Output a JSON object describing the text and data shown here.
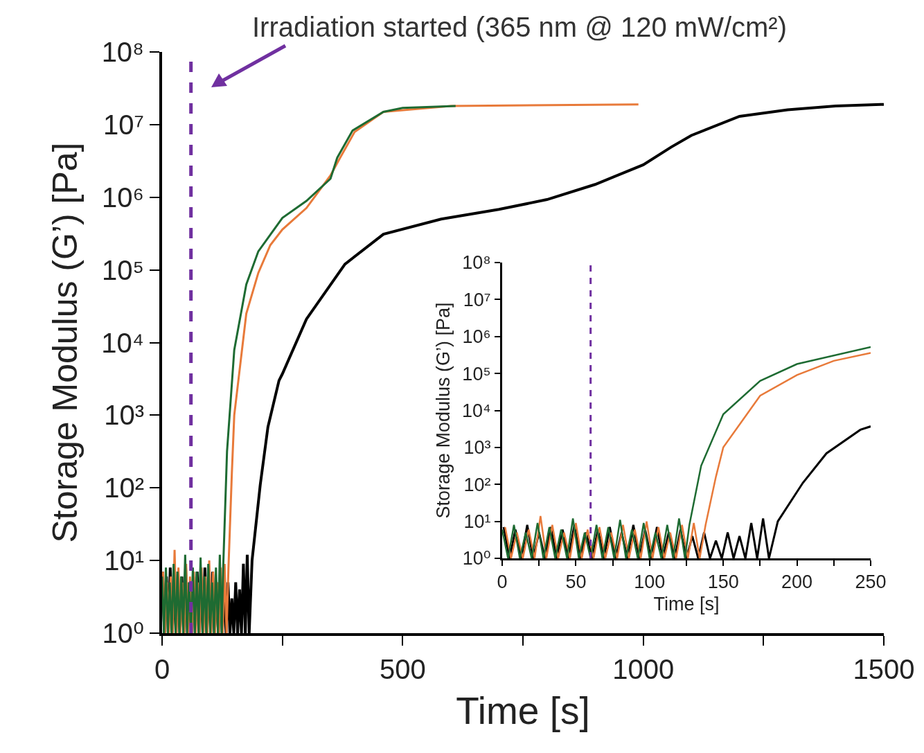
{
  "chart_data": [
    {
      "type": "line",
      "xlabel": "Time [s]",
      "ylabel": "Storage Modulus (G’) [Pa]",
      "log": "y",
      "grid": false,
      "xlim": [
        0,
        1500
      ],
      "xticks": [
        0,
        {
          "value": 250,
          "label": null
        },
        500,
        {
          "value": 750,
          "label": null
        },
        1000,
        {
          "value": 1250,
          "label": null
        },
        1500
      ],
      "ylim": [
        1,
        100000000
      ],
      "yticks": [
        {
          "value": 1,
          "label": "10⁰"
        },
        {
          "value": 10,
          "label": "10¹"
        },
        {
          "value": 100,
          "label": "10²"
        },
        {
          "value": 1000,
          "label": "10³"
        },
        {
          "value": 10000,
          "label": "10⁴"
        },
        {
          "value": 100000,
          "label": "10⁵"
        },
        {
          "value": 1000000,
          "label": "10⁶"
        },
        {
          "value": 10000000,
          "label": "10⁷"
        },
        {
          "value": 100000000,
          "label": "10⁸"
        }
      ],
      "ref_lines": [
        {
          "axis": "x",
          "value": 60,
          "color": "#7030a0",
          "line_style": "dashed"
        }
      ],
      "annotations": [
        "Irradiation started (365 nm @ 120 mW/cm²)"
      ],
      "series": [
        {
          "color": "#000000",
          "x": [
            1,
            5,
            9,
            13,
            17,
            21,
            25,
            29,
            33,
            37,
            41,
            45,
            49,
            53,
            57,
            61,
            65,
            69,
            73,
            77,
            81,
            85,
            89,
            93,
            97,
            101,
            105,
            109,
            113,
            117,
            121,
            125,
            129,
            133,
            137,
            141,
            145,
            149,
            153,
            157,
            161,
            165,
            169,
            173,
            177,
            181,
            187,
            204,
            220,
            243,
            250,
            300,
            380,
            460,
            580,
            700,
            800,
            900,
            1000,
            1058,
            1100,
            1200,
            1300,
            1400,
            1500
          ],
          "values": [
            7,
            1,
            6,
            1,
            8,
            1,
            5,
            1,
            7,
            1,
            6,
            1,
            8,
            1,
            5,
            1,
            6,
            1,
            7,
            1,
            5,
            1,
            8,
            1,
            6,
            1,
            7,
            1,
            5,
            1,
            6,
            1,
            4,
            1,
            5,
            1,
            3,
            1,
            5,
            1,
            4,
            1,
            9,
            1,
            12,
            1,
            10,
            110,
            690,
            3000,
            3700,
            21000,
            120000,
            310000,
            500000,
            680000,
            930000,
            1500000,
            2800000,
            4900000,
            7100000,
            13000000,
            16000000,
            18000000,
            19000000
          ]
        },
        {
          "color": "#e87a3a",
          "x": [
            2,
            6,
            10,
            14,
            18,
            22,
            26,
            30,
            34,
            38,
            42,
            46,
            50,
            54,
            58,
            62,
            66,
            70,
            74,
            78,
            82,
            86,
            90,
            94,
            98,
            102,
            106,
            110,
            114,
            118,
            122,
            126,
            130,
            134,
            138,
            145,
            150,
            175,
            200,
            225,
            250,
            300,
            350,
            370,
            400,
            460,
            600,
            990
          ],
          "values": [
            7,
            1,
            5,
            1,
            6,
            1,
            14,
            1,
            8,
            1,
            5,
            1,
            9,
            1,
            6,
            1,
            7,
            1,
            5,
            1,
            8,
            1,
            6,
            1,
            10,
            1,
            7,
            1,
            5,
            1,
            8,
            1,
            9,
            1,
            8,
            160,
            1000,
            25000,
            91000,
            220000,
            360000,
            710000,
            2000000,
            3500000,
            7900000,
            15000000,
            18000000,
            19000000
          ]
        },
        {
          "color": "#1e6b32",
          "x": [
            0,
            4,
            8,
            12,
            16,
            20,
            24,
            28,
            32,
            36,
            40,
            44,
            48,
            52,
            56,
            60,
            64,
            68,
            72,
            76,
            80,
            84,
            88,
            92,
            96,
            100,
            104,
            108,
            112,
            116,
            120,
            124,
            127,
            135,
            150,
            175,
            200,
            250,
            300,
            350,
            364,
            396,
            460,
            500,
            610
          ],
          "values": [
            6,
            1,
            8,
            1,
            5,
            1,
            9,
            1,
            7,
            1,
            6,
            1,
            12,
            1,
            5,
            1,
            8,
            1,
            7,
            1,
            11,
            1,
            6,
            1,
            9,
            1,
            5,
            1,
            8,
            1,
            12,
            1,
            8,
            320,
            7900,
            63000,
            180000,
            520000,
            890000,
            1800000,
            3500000,
            8300000,
            15000000,
            17000000,
            18000000
          ]
        }
      ]
    },
    {
      "type": "line",
      "xlabel": "Time [s]",
      "ylabel": "Storage Modulus (G’) [Pa]",
      "log": "y",
      "grid": false,
      "xlim": [
        0,
        250
      ],
      "xticks": [
        0,
        {
          "value": 25,
          "label": null
        },
        50,
        {
          "value": 75,
          "label": null
        },
        100,
        {
          "value": 125,
          "label": null
        },
        150,
        {
          "value": 175,
          "label": null
        },
        200,
        {
          "value": 225,
          "label": null
        },
        250
      ],
      "ylim": [
        1,
        100000000
      ],
      "yticks": [
        {
          "value": 1,
          "label": "10⁰"
        },
        {
          "value": 10,
          "label": "10¹"
        },
        {
          "value": 100,
          "label": "10²"
        },
        {
          "value": 1000,
          "label": "10³"
        },
        {
          "value": 10000,
          "label": "10⁴"
        },
        {
          "value": 100000,
          "label": "10⁵"
        },
        {
          "value": 1000000,
          "label": "10⁶"
        },
        {
          "value": 10000000,
          "label": "10⁷"
        },
        {
          "value": 100000000,
          "label": "10⁸"
        }
      ],
      "ref_lines": [
        {
          "axis": "x",
          "value": 60,
          "color": "#7030a0",
          "line_style": "dashed"
        }
      ],
      "series": [
        {
          "color": "#000000",
          "x": [
            1,
            5,
            9,
            13,
            17,
            21,
            25,
            29,
            33,
            37,
            41,
            45,
            49,
            53,
            57,
            61,
            65,
            69,
            73,
            77,
            81,
            85,
            89,
            93,
            97,
            101,
            105,
            109,
            113,
            117,
            121,
            125,
            129,
            133,
            137,
            141,
            145,
            149,
            153,
            157,
            161,
            165,
            169,
            173,
            177,
            181,
            187,
            204,
            220,
            243,
            250
          ],
          "values": [
            7,
            1,
            6,
            1,
            8,
            1,
            5,
            1,
            7,
            1,
            6,
            1,
            8,
            1,
            5,
            1,
            6,
            1,
            7,
            1,
            5,
            1,
            8,
            1,
            6,
            1,
            7,
            1,
            5,
            1,
            6,
            1,
            4,
            1,
            5,
            1,
            3,
            1,
            5,
            1,
            4,
            1,
            9,
            1,
            12,
            1,
            10,
            110,
            690,
            3000,
            3700
          ]
        },
        {
          "color": "#e87a3a",
          "x": [
            2,
            6,
            10,
            14,
            18,
            22,
            26,
            30,
            34,
            38,
            42,
            46,
            50,
            54,
            58,
            62,
            66,
            70,
            74,
            78,
            82,
            86,
            90,
            94,
            98,
            102,
            106,
            110,
            114,
            118,
            122,
            126,
            130,
            134,
            138,
            145,
            150,
            175,
            200,
            225,
            250
          ],
          "values": [
            7,
            1,
            5,
            1,
            6,
            1,
            14,
            1,
            8,
            1,
            5,
            1,
            9,
            1,
            6,
            1,
            7,
            1,
            5,
            1,
            8,
            1,
            6,
            1,
            10,
            1,
            7,
            1,
            5,
            1,
            8,
            1,
            9,
            1,
            8,
            160,
            1000,
            25000,
            91000,
            220000,
            360000
          ]
        },
        {
          "color": "#1e6b32",
          "x": [
            0,
            4,
            8,
            12,
            16,
            20,
            24,
            28,
            32,
            36,
            40,
            44,
            48,
            52,
            56,
            60,
            64,
            68,
            72,
            76,
            80,
            84,
            88,
            92,
            96,
            100,
            104,
            108,
            112,
            116,
            120,
            124,
            127,
            135,
            150,
            175,
            200,
            250
          ],
          "values": [
            6,
            1,
            8,
            1,
            5,
            1,
            9,
            1,
            7,
            1,
            6,
            1,
            12,
            1,
            5,
            1,
            8,
            1,
            7,
            1,
            11,
            1,
            6,
            1,
            9,
            1,
            5,
            1,
            8,
            1,
            12,
            1,
            8,
            320,
            7900,
            63000,
            180000,
            520000
          ]
        }
      ]
    }
  ]
}
